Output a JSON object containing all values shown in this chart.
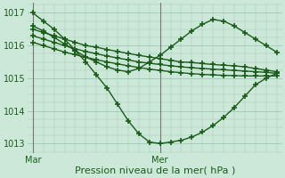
{
  "bg_color": "#cce8d8",
  "grid_color": "#a0c8b0",
  "line_color": "#1a5c1a",
  "marker_color": "#1a5c1a",
  "xlabel": "Pression niveau de la mer( hPa )",
  "xlabel_fontsize": 8,
  "ylim": [
    1012.7,
    1017.3
  ],
  "yticks": [
    1013,
    1014,
    1015,
    1016,
    1017
  ],
  "xtick_labels": [
    "Mar",
    "Mer"
  ],
  "series": [
    {
      "x": [
        0,
        1,
        2,
        3,
        4,
        5,
        6,
        7,
        8,
        9,
        10,
        11,
        12,
        13,
        14,
        15,
        16,
        17,
        18,
        19,
        20,
        21,
        22,
        23
      ],
      "y": [
        1017.0,
        1016.75,
        1016.5,
        1016.2,
        1015.85,
        1015.5,
        1015.1,
        1014.7,
        1014.2,
        1013.7,
        1013.3,
        1013.05,
        1013.0,
        1013.05,
        1013.1,
        1013.2,
        1013.35,
        1013.55,
        1013.8,
        1014.1,
        1014.45,
        1014.8,
        1015.0,
        1015.15
      ],
      "marker": "+",
      "markersize": 4,
      "lw": 1.0
    },
    {
      "x": [
        0,
        1,
        2,
        3,
        4,
        5,
        6,
        7,
        8,
        9,
        10,
        11,
        12,
        13,
        14,
        15,
        16,
        17,
        18,
        19,
        20,
        21,
        22,
        23
      ],
      "y": [
        1016.6,
        1016.45,
        1016.25,
        1016.05,
        1015.85,
        1015.65,
        1015.5,
        1015.35,
        1015.25,
        1015.2,
        1015.3,
        1015.5,
        1015.7,
        1015.95,
        1016.2,
        1016.45,
        1016.65,
        1016.8,
        1016.75,
        1016.6,
        1016.4,
        1016.2,
        1016.0,
        1015.8
      ],
      "marker": "+",
      "markersize": 4,
      "lw": 1.0
    },
    {
      "x": [
        0,
        1,
        2,
        3,
        4,
        5,
        6,
        7,
        8,
        9,
        10,
        11,
        12,
        13,
        14,
        15,
        16,
        17,
        18,
        19,
        20,
        21,
        22,
        23
      ],
      "y": [
        1016.5,
        1016.4,
        1016.3,
        1016.2,
        1016.1,
        1016.0,
        1015.95,
        1015.88,
        1015.82,
        1015.76,
        1015.7,
        1015.65,
        1015.6,
        1015.55,
        1015.5,
        1015.48,
        1015.45,
        1015.42,
        1015.4,
        1015.38,
        1015.35,
        1015.3,
        1015.25,
        1015.2
      ],
      "marker": "+",
      "markersize": 4,
      "lw": 1.0
    },
    {
      "x": [
        0,
        1,
        2,
        3,
        4,
        5,
        6,
        7,
        8,
        9,
        10,
        11,
        12,
        13,
        14,
        15,
        16,
        17,
        18,
        19,
        20,
        21,
        22,
        23
      ],
      "y": [
        1016.3,
        1016.2,
        1016.1,
        1016.0,
        1015.9,
        1015.82,
        1015.75,
        1015.68,
        1015.62,
        1015.56,
        1015.5,
        1015.46,
        1015.42,
        1015.38,
        1015.35,
        1015.32,
        1015.3,
        1015.28,
        1015.26,
        1015.24,
        1015.22,
        1015.2,
        1015.18,
        1015.15
      ],
      "marker": "+",
      "markersize": 4,
      "lw": 1.0
    },
    {
      "x": [
        0,
        1,
        2,
        3,
        4,
        5,
        6,
        7,
        8,
        9,
        10,
        11,
        12,
        13,
        14,
        15,
        16,
        17,
        18,
        19,
        20,
        21,
        22,
        23
      ],
      "y": [
        1016.1,
        1016.0,
        1015.9,
        1015.8,
        1015.72,
        1015.64,
        1015.57,
        1015.5,
        1015.44,
        1015.38,
        1015.33,
        1015.28,
        1015.24,
        1015.2,
        1015.17,
        1015.14,
        1015.12,
        1015.1,
        1015.09,
        1015.08,
        1015.07,
        1015.07,
        1015.07,
        1015.07
      ],
      "marker": "+",
      "markersize": 4,
      "lw": 1.0
    }
  ],
  "vline_mar": 0,
  "vline_mer": 12,
  "xtick_positions": [
    0,
    12
  ],
  "figsize": [
    3.2,
    2.0
  ],
  "dpi": 100
}
